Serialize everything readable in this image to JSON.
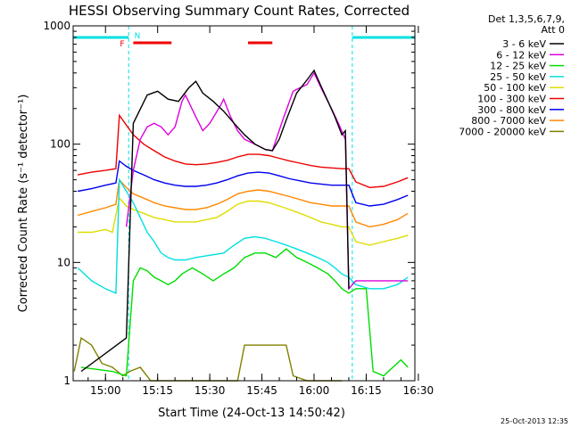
{
  "chart_data": {
    "type": "line",
    "title": "HESSI Observing Summary Count Rates, Corrected",
    "xlabel": "Start Time (24-Oct-13 14:50:42)",
    "ylabel": "Corrected Count Rate (s⁻¹ detector⁻¹)",
    "y_scale": "log",
    "ylim": [
      1,
      1000
    ],
    "xlim": [
      "14:50:42",
      "16:29:00"
    ],
    "x_ticks": [
      "15:00",
      "15:15",
      "15:30",
      "15:45",
      "16:00",
      "16:15",
      "16:30"
    ],
    "y_ticks": [
      "1",
      "10",
      "100",
      "1000"
    ],
    "legend_header": [
      "Det 1,3,5,6,7,9,",
      "Att 0"
    ],
    "legend_position": "right",
    "timestamp": "25-Oct-2013 12:35",
    "flags": {
      "flare_label": "F",
      "night_label": "N",
      "flare_bars": [
        [
          "15:08",
          "15:19"
        ],
        [
          "15:41",
          "15:48"
        ]
      ],
      "flag_color": "#ee0000",
      "night_color": "#00e0e0"
    },
    "gaps": [
      [
        "14:50:42",
        "15:06:40"
      ],
      [
        "16:11:00",
        "16:29:00"
      ]
    ],
    "series": [
      {
        "name": "3 - 6 keV",
        "color": "#000000",
        "points": [
          [
            "14:53",
            1.2
          ],
          [
            "15:06",
            2.3
          ],
          [
            "15:08",
            150
          ],
          [
            "15:12",
            260
          ],
          [
            "15:15",
            280
          ],
          [
            "15:18",
            240
          ],
          [
            "15:21",
            230
          ],
          [
            "15:24",
            300
          ],
          [
            "15:26",
            340
          ],
          [
            "15:28",
            270
          ],
          [
            "15:31",
            230
          ],
          [
            "15:34",
            190
          ],
          [
            "15:37",
            150
          ],
          [
            "15:40",
            120
          ],
          [
            "15:43",
            100
          ],
          [
            "15:46",
            90
          ],
          [
            "15:48",
            88
          ],
          [
            "15:50",
            110
          ],
          [
            "15:52",
            160
          ],
          [
            "15:55",
            270
          ],
          [
            "15:58",
            350
          ],
          [
            "16:00",
            420
          ],
          [
            "16:02",
            310
          ],
          [
            "16:04",
            230
          ],
          [
            "16:06",
            170
          ],
          [
            "16:08",
            120
          ],
          [
            "16:09",
            130
          ],
          [
            "16:10",
            6
          ]
        ]
      },
      {
        "name": "6 - 12 keV",
        "color": "#dd00dd",
        "points": [
          [
            "15:06",
            20
          ],
          [
            "15:08",
            60
          ],
          [
            "15:10",
            110
          ],
          [
            "15:12",
            140
          ],
          [
            "15:14",
            150
          ],
          [
            "15:16",
            140
          ],
          [
            "15:18",
            120
          ],
          [
            "15:20",
            140
          ],
          [
            "15:22",
            230
          ],
          [
            "15:23",
            260
          ],
          [
            "15:26",
            170
          ],
          [
            "15:28",
            130
          ],
          [
            "15:30",
            150
          ],
          [
            "15:33",
            210
          ],
          [
            "15:34",
            240
          ],
          [
            "15:36",
            170
          ],
          [
            "15:38",
            130
          ],
          [
            "15:40",
            110
          ],
          [
            "15:43",
            100
          ],
          [
            "15:46",
            90
          ],
          [
            "15:48",
            88
          ],
          [
            "15:51",
            160
          ],
          [
            "15:54",
            280
          ],
          [
            "15:56",
            300
          ],
          [
            "15:58",
            320
          ],
          [
            "16:00",
            400
          ],
          [
            "16:02",
            300
          ],
          [
            "16:05",
            200
          ],
          [
            "16:07",
            150
          ],
          [
            "16:09",
            110
          ],
          [
            "16:10",
            6
          ],
          [
            "16:12",
            7
          ],
          [
            "16:15",
            7
          ],
          [
            "16:27",
            7
          ]
        ]
      },
      {
        "name": "12 - 25 keV",
        "color": "#00dd00",
        "points": [
          [
            "14:53",
            1.3
          ],
          [
            "15:02",
            1.2
          ],
          [
            "15:06",
            1.1
          ],
          [
            "15:08",
            7
          ],
          [
            "15:10",
            9
          ],
          [
            "15:12",
            8.5
          ],
          [
            "15:14",
            7.5
          ],
          [
            "15:16",
            7
          ],
          [
            "15:18",
            6.5
          ],
          [
            "15:20",
            7
          ],
          [
            "15:22",
            8
          ],
          [
            "15:25",
            9
          ],
          [
            "15:28",
            8
          ],
          [
            "15:31",
            7
          ],
          [
            "15:34",
            8
          ],
          [
            "15:37",
            9
          ],
          [
            "15:40",
            11
          ],
          [
            "15:43",
            12
          ],
          [
            "15:46",
            12
          ],
          [
            "15:49",
            11
          ],
          [
            "15:52",
            13
          ],
          [
            "15:55",
            11
          ],
          [
            "15:58",
            10
          ],
          [
            "16:01",
            9
          ],
          [
            "16:04",
            8
          ],
          [
            "16:06",
            7
          ],
          [
            "16:08",
            6
          ],
          [
            "16:10",
            5.5
          ],
          [
            "16:12",
            6
          ],
          [
            "16:15",
            6
          ],
          [
            "16:17",
            1.2
          ],
          [
            "16:20",
            1.1
          ],
          [
            "16:25",
            1.5
          ],
          [
            "16:27",
            1.3
          ]
        ]
      },
      {
        "name": "25 - 50 keV",
        "color": "#00e0e0",
        "points": [
          [
            "14:52",
            9
          ],
          [
            "14:56",
            7
          ],
          [
            "15:00",
            6
          ],
          [
            "15:03",
            5.5
          ],
          [
            "15:04",
            50
          ],
          [
            "15:06",
            40
          ],
          [
            "15:08",
            32
          ],
          [
            "15:10",
            24
          ],
          [
            "15:12",
            18
          ],
          [
            "15:14",
            15
          ],
          [
            "15:16",
            12
          ],
          [
            "15:18",
            11
          ],
          [
            "15:20",
            10.5
          ],
          [
            "15:23",
            10.5
          ],
          [
            "15:26",
            11
          ],
          [
            "15:30",
            11.5
          ],
          [
            "15:34",
            12
          ],
          [
            "15:37",
            14
          ],
          [
            "15:40",
            16
          ],
          [
            "15:43",
            16.5
          ],
          [
            "15:46",
            16
          ],
          [
            "15:49",
            15
          ],
          [
            "15:52",
            14
          ],
          [
            "15:55",
            13
          ],
          [
            "15:58",
            12
          ],
          [
            "16:01",
            11
          ],
          [
            "16:04",
            10
          ],
          [
            "16:06",
            9
          ],
          [
            "16:08",
            8
          ],
          [
            "16:10",
            7.5
          ],
          [
            "16:12",
            6.5
          ],
          [
            "16:16",
            6
          ],
          [
            "16:20",
            6
          ],
          [
            "16:24",
            6.5
          ],
          [
            "16:27",
            7.5
          ]
        ]
      },
      {
        "name": "50 - 100 keV",
        "color": "#dddd00",
        "points": [
          [
            "14:52",
            18
          ],
          [
            "14:56",
            18
          ],
          [
            "15:00",
            19
          ],
          [
            "15:02",
            18
          ],
          [
            "15:04",
            35
          ],
          [
            "15:06",
            30
          ],
          [
            "15:08",
            28
          ],
          [
            "15:11",
            26
          ],
          [
            "15:14",
            24
          ],
          [
            "15:17",
            23
          ],
          [
            "15:20",
            22
          ],
          [
            "15:23",
            22
          ],
          [
            "15:26",
            22
          ],
          [
            "15:29",
            23
          ],
          [
            "15:32",
            24
          ],
          [
            "15:35",
            27
          ],
          [
            "15:38",
            31
          ],
          [
            "15:41",
            33
          ],
          [
            "15:44",
            33
          ],
          [
            "15:47",
            32
          ],
          [
            "15:50",
            30
          ],
          [
            "15:53",
            28
          ],
          [
            "15:56",
            26
          ],
          [
            "15:59",
            24
          ],
          [
            "16:02",
            22
          ],
          [
            "16:05",
            21
          ],
          [
            "16:08",
            20
          ],
          [
            "16:10",
            20
          ],
          [
            "16:12",
            15
          ],
          [
            "16:16",
            14
          ],
          [
            "16:20",
            15
          ],
          [
            "16:24",
            16
          ],
          [
            "16:27",
            17
          ]
        ]
      },
      {
        "name": "100 - 300 keV",
        "color": "#ee0000",
        "points": [
          [
            "14:52",
            55
          ],
          [
            "14:56",
            58
          ],
          [
            "15:00",
            60
          ],
          [
            "15:03",
            62
          ],
          [
            "15:04",
            175
          ],
          [
            "15:06",
            145
          ],
          [
            "15:08",
            120
          ],
          [
            "15:11",
            100
          ],
          [
            "15:14",
            88
          ],
          [
            "15:17",
            78
          ],
          [
            "15:20",
            72
          ],
          [
            "15:23",
            68
          ],
          [
            "15:26",
            67
          ],
          [
            "15:29",
            68
          ],
          [
            "15:32",
            70
          ],
          [
            "15:35",
            73
          ],
          [
            "15:38",
            78
          ],
          [
            "15:41",
            82
          ],
          [
            "15:44",
            82
          ],
          [
            "15:47",
            80
          ],
          [
            "15:50",
            76
          ],
          [
            "15:53",
            72
          ],
          [
            "15:56",
            69
          ],
          [
            "15:59",
            66
          ],
          [
            "16:02",
            64
          ],
          [
            "16:05",
            63
          ],
          [
            "16:08",
            62
          ],
          [
            "16:10",
            62
          ],
          [
            "16:12",
            48
          ],
          [
            "16:16",
            43
          ],
          [
            "16:20",
            44
          ],
          [
            "16:24",
            48
          ],
          [
            "16:27",
            52
          ]
        ]
      },
      {
        "name": "300 - 800 keV",
        "color": "#0000ee",
        "points": [
          [
            "14:52",
            40
          ],
          [
            "14:56",
            42
          ],
          [
            "15:00",
            45
          ],
          [
            "15:03",
            47
          ],
          [
            "15:04",
            72
          ],
          [
            "15:06",
            65
          ],
          [
            "15:08",
            60
          ],
          [
            "15:11",
            55
          ],
          [
            "15:14",
            50
          ],
          [
            "15:17",
            47
          ],
          [
            "15:20",
            45
          ],
          [
            "15:23",
            44
          ],
          [
            "15:26",
            44
          ],
          [
            "15:29",
            45
          ],
          [
            "15:32",
            47
          ],
          [
            "15:35",
            50
          ],
          [
            "15:38",
            54
          ],
          [
            "15:41",
            57
          ],
          [
            "15:44",
            58
          ],
          [
            "15:47",
            57
          ],
          [
            "15:50",
            54
          ],
          [
            "15:53",
            51
          ],
          [
            "15:56",
            49
          ],
          [
            "15:59",
            47
          ],
          [
            "16:02",
            46
          ],
          [
            "16:05",
            45
          ],
          [
            "16:08",
            45
          ],
          [
            "16:10",
            45
          ],
          [
            "16:12",
            32
          ],
          [
            "16:16",
            30
          ],
          [
            "16:20",
            31
          ],
          [
            "16:24",
            34
          ],
          [
            "16:27",
            37
          ]
        ]
      },
      {
        "name": "800 - 7000 keV",
        "color": "#ff8800",
        "points": [
          [
            "14:52",
            25
          ],
          [
            "14:56",
            27
          ],
          [
            "15:00",
            29
          ],
          [
            "15:03",
            31
          ],
          [
            "15:04",
            50
          ],
          [
            "15:06",
            43
          ],
          [
            "15:08",
            38
          ],
          [
            "15:11",
            35
          ],
          [
            "15:14",
            32
          ],
          [
            "15:17",
            30
          ],
          [
            "15:20",
            29
          ],
          [
            "15:23",
            28
          ],
          [
            "15:26",
            28
          ],
          [
            "15:29",
            29
          ],
          [
            "15:32",
            31
          ],
          [
            "15:35",
            34
          ],
          [
            "15:38",
            38
          ],
          [
            "15:41",
            40
          ],
          [
            "15:44",
            41
          ],
          [
            "15:47",
            40
          ],
          [
            "15:50",
            38
          ],
          [
            "15:53",
            36
          ],
          [
            "15:56",
            34
          ],
          [
            "15:59",
            32
          ],
          [
            "16:02",
            31
          ],
          [
            "16:05",
            30
          ],
          [
            "16:08",
            30
          ],
          [
            "16:10",
            30
          ],
          [
            "16:12",
            22
          ],
          [
            "16:16",
            20
          ],
          [
            "16:20",
            21
          ],
          [
            "16:24",
            23
          ],
          [
            "16:27",
            26
          ]
        ]
      },
      {
        "name": "7000 - 20000 keV",
        "color": "#808000",
        "points": [
          [
            "14:51",
            1.2
          ],
          [
            "14:53",
            2.3
          ],
          [
            "14:56",
            2.0
          ],
          [
            "14:59",
            1.4
          ],
          [
            "15:02",
            1.3
          ],
          [
            "15:05",
            1.1
          ],
          [
            "15:07",
            1.2
          ],
          [
            "15:10",
            1.3
          ],
          [
            "15:13",
            1.0
          ],
          [
            "15:25",
            1.0
          ],
          [
            "15:38",
            1.0
          ],
          [
            "15:40",
            2.0
          ],
          [
            "15:44",
            2.0
          ],
          [
            "15:48",
            2.0
          ],
          [
            "15:52",
            2.0
          ],
          [
            "15:54",
            1.1
          ],
          [
            "15:58",
            1.0
          ],
          [
            "16:06",
            1.0
          ],
          [
            "16:08",
            1.0
          ]
        ]
      }
    ]
  }
}
